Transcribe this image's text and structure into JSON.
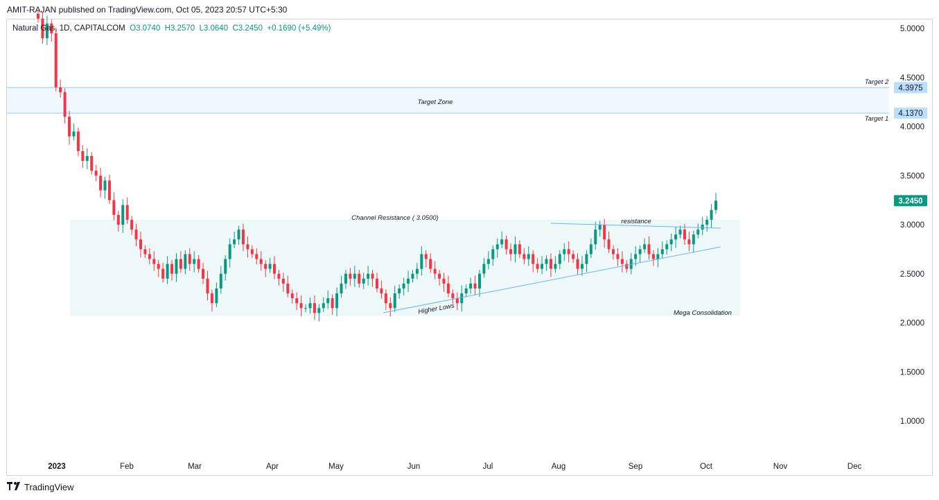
{
  "header": {
    "published": "AMIT-RAJAN published on TradingView.com, Oct 05, 2023 20:57 UTC+5:30"
  },
  "legend": {
    "symbol": "Natural Gas, 1D, CAPITALCOM",
    "open": "O3.0740",
    "high": "H3.2570",
    "low": "L3.0640",
    "close": "C3.2450",
    "change": "+0.1690 (+5.49%)"
  },
  "footer": {
    "brand": "TradingView"
  },
  "colors": {
    "up": "#089981",
    "down": "#f23645",
    "line": "#64b5f6",
    "zone": "#e3f2fd",
    "box": "#e0f2f1"
  },
  "chart_data": {
    "type": "candlestick",
    "title": "Natural Gas, 1D, CAPITALCOM",
    "y_axis": {
      "ticks": [
        "5.0000",
        "4.5000",
        "4.0000",
        "3.5000",
        "3.0000",
        "2.5000",
        "2.0000",
        "1.5000",
        "1.0000"
      ],
      "range": [
        0.8,
        5.2
      ]
    },
    "x_axis": {
      "ticks": [
        "2023",
        "Feb",
        "Mar",
        "Apr",
        "May",
        "Jun",
        "Jul",
        "Aug",
        "Sep",
        "Oct",
        "Nov",
        "Dec"
      ]
    },
    "price_labels": [
      {
        "text": "4.3975",
        "value": 4.3975
      },
      {
        "text": "4.1370",
        "value": 4.137
      },
      {
        "text": "3.2450",
        "value": 3.245,
        "current": true
      }
    ],
    "annotations": {
      "target_zone": "Target Zone",
      "target1": "Target 1",
      "target2": "Target 2",
      "channel_resistance": "Channel Resistance ( 3.0500)",
      "higher_lows": "Higher Lows",
      "resistance": "resistance",
      "mega_consolidation": "Mega Consolidation"
    },
    "target_zone": [
      4.137,
      4.3975
    ],
    "consolidation_box": [
      2.07,
      3.05
    ],
    "ohlc_close_path": [
      5.1,
      4.9,
      5.05,
      4.95,
      4.4,
      4.35,
      4.1,
      3.9,
      3.95,
      3.75,
      3.65,
      3.7,
      3.55,
      3.5,
      3.35,
      3.45,
      3.25,
      3.1,
      3.0,
      3.2,
      3.05,
      2.95,
      2.85,
      2.75,
      2.7,
      2.65,
      2.6,
      2.55,
      2.45,
      2.6,
      2.5,
      2.65,
      2.55,
      2.7,
      2.6,
      2.65,
      2.55,
      2.45,
      2.3,
      2.2,
      2.35,
      2.5,
      2.65,
      2.8,
      2.85,
      2.95,
      2.8,
      2.75,
      2.7,
      2.65,
      2.6,
      2.55,
      2.6,
      2.5,
      2.45,
      2.4,
      2.3,
      2.25,
      2.2,
      2.15,
      2.15,
      2.2,
      2.1,
      2.15,
      2.2,
      2.25,
      2.15,
      2.3,
      2.4,
      2.5,
      2.45,
      2.5,
      2.4,
      2.45,
      2.5,
      2.45,
      2.35,
      2.3,
      2.2,
      2.15,
      2.3,
      2.35,
      2.4,
      2.45,
      2.5,
      2.55,
      2.7,
      2.65,
      2.55,
      2.5,
      2.45,
      2.4,
      2.3,
      2.25,
      2.2,
      2.3,
      2.35,
      2.4,
      2.35,
      2.5,
      2.6,
      2.65,
      2.75,
      2.8,
      2.85,
      2.75,
      2.7,
      2.8,
      2.7,
      2.65,
      2.7,
      2.6,
      2.55,
      2.6,
      2.65,
      2.55,
      2.6,
      2.7,
      2.75,
      2.7,
      2.65,
      2.55,
      2.6,
      2.7,
      2.8,
      2.95,
      3.0,
      2.85,
      2.75,
      2.7,
      2.65,
      2.6,
      2.55,
      2.65,
      2.7,
      2.75,
      2.8,
      2.7,
      2.65,
      2.7,
      2.75,
      2.8,
      2.85,
      2.9,
      2.95,
      2.85,
      2.8,
      2.9,
      2.95,
      3.0,
      3.05,
      3.15,
      3.245
    ],
    "lines": [
      {
        "name": "higher-lows",
        "from": [
          "May-end",
          2.1
        ],
        "to": [
          "Oct",
          2.77
        ]
      },
      {
        "name": "resistance",
        "from": [
          "Aug",
          3.0
        ],
        "to": [
          "Oct",
          2.95
        ]
      }
    ]
  }
}
